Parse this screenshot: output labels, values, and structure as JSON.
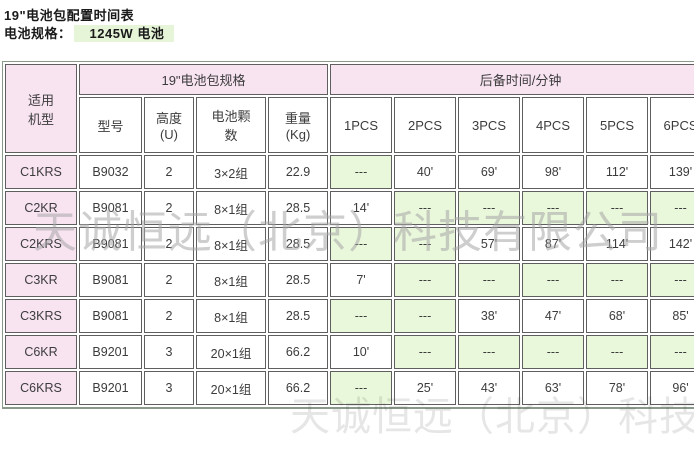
{
  "page": {
    "title": "19\"电池包配置时间表",
    "spec_label": "电池规格：",
    "spec_value": "1245W 电池"
  },
  "table": {
    "group_headers": {
      "applicable_model_lines": [
        "适用",
        "机型"
      ],
      "battery_pack_spec": "19\"电池包规格",
      "backup_time": "后备时间/分钟"
    },
    "sub_headers": [
      {
        "key": "model-no",
        "lines": [
          "型号"
        ]
      },
      {
        "key": "height-u",
        "lines": [
          "高度",
          "(U)"
        ]
      },
      {
        "key": "cell-count",
        "lines": [
          "电池颗",
          "数"
        ]
      },
      {
        "key": "weight-kg",
        "lines": [
          "重量",
          "(Kg)"
        ]
      },
      {
        "key": "1pcs",
        "lines": [
          "1PCS"
        ]
      },
      {
        "key": "2pcs",
        "lines": [
          "2PCS"
        ]
      },
      {
        "key": "3pcs",
        "lines": [
          "3PCS"
        ]
      },
      {
        "key": "4pcs",
        "lines": [
          "4PCS"
        ]
      },
      {
        "key": "5pcs",
        "lines": [
          "5PCS"
        ]
      },
      {
        "key": "6pcs",
        "lines": [
          "6PCS"
        ]
      }
    ],
    "empty_marker": "---",
    "rows": [
      {
        "model": "C1KRS",
        "part_no": "B9032",
        "height_u": "2",
        "cell_count": "3×2组",
        "weight_kg": "22.9",
        "backup_minutes": [
          "---",
          "40'",
          "69'",
          "98'",
          "112'",
          "139'"
        ]
      },
      {
        "model": "C2KR",
        "part_no": "B9081",
        "height_u": "2",
        "cell_count": "8×1组",
        "weight_kg": "28.5",
        "backup_minutes": [
          "14'",
          "---",
          "---",
          "---",
          "---",
          "---"
        ]
      },
      {
        "model": "C2KRS",
        "part_no": "B9081",
        "height_u": "2",
        "cell_count": "8×1组",
        "weight_kg": "28.5",
        "backup_minutes": [
          "---",
          "---",
          "57'",
          "87'",
          "114'",
          "142'"
        ]
      },
      {
        "model": "C3KR",
        "part_no": "B9081",
        "height_u": "2",
        "cell_count": "8×1组",
        "weight_kg": "28.5",
        "backup_minutes": [
          "7'",
          "---",
          "---",
          "---",
          "---",
          "---"
        ]
      },
      {
        "model": "C3KRS",
        "part_no": "B9081",
        "height_u": "2",
        "cell_count": "8×1组",
        "weight_kg": "28.5",
        "backup_minutes": [
          "---",
          "---",
          "38'",
          "47'",
          "68'",
          "85'"
        ]
      },
      {
        "model": "C6KR",
        "part_no": "B9201",
        "height_u": "3",
        "cell_count": "20×1组",
        "weight_kg": "66.2",
        "backup_minutes": [
          "10'",
          "---",
          "---",
          "---",
          "---",
          "---"
        ]
      },
      {
        "model": "C6KRS",
        "part_no": "B9201",
        "height_u": "3",
        "cell_count": "20×1组",
        "weight_kg": "66.2",
        "backup_minutes": [
          "---",
          "25'",
          "43'",
          "63'",
          "78'",
          "96'"
        ]
      }
    ]
  },
  "watermark": {
    "text": "天诚恒远（北京）科技有限公司"
  },
  "colors": {
    "header_pink": "#f8e3f1",
    "empty_green": "#e9f7da",
    "spec_highlight": "#e6f5d8",
    "cell_border": "#5f5f5f"
  }
}
